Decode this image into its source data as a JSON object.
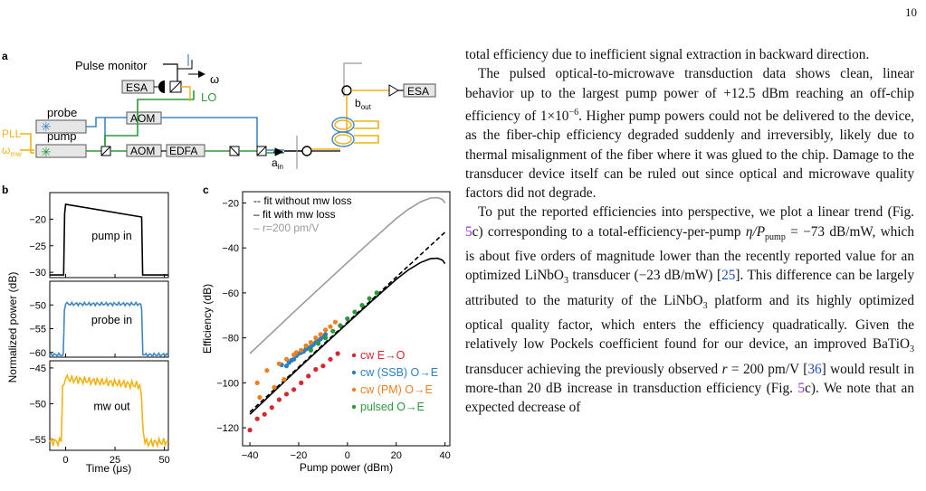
{
  "page": {
    "number": "10"
  },
  "figure": {
    "panel_a": {
      "label": "a",
      "pulse_monitor": "Pulse monitor",
      "omega": "ω",
      "esa_left": "ESA",
      "lo": "LO",
      "probe": "probe",
      "pump": "pump",
      "pll": "PLL",
      "omega_mw": "ω",
      "omega_mw_sub": "mw",
      "aom1": "AOM",
      "aom2": "AOM",
      "edfa": "EDFA",
      "a_in": "a",
      "a_in_sub": "in",
      "b_out": "b",
      "b_out_sub": "out",
      "esa_right": "ESA"
    },
    "panel_b": {
      "label": "b",
      "ylabel": "Normalized power (dB)",
      "xlabel": "Time (μs)",
      "x_ticks": [
        "0",
        "25",
        "50"
      ],
      "subpanels": [
        {
          "label": "pump in",
          "color": "#000000",
          "y_ticks": [
            "−20",
            "−25",
            "−30"
          ],
          "ylim": [
            -31,
            -15
          ]
        },
        {
          "label": "probe in",
          "color": "#3f86c4",
          "y_ticks": [
            "−50",
            "−55",
            "−60"
          ],
          "ylim": [
            -61,
            -45
          ]
        },
        {
          "label": "mw out",
          "color": "#f2b315",
          "y_ticks": [
            "−45",
            "−50",
            "−55"
          ],
          "ylim": [
            -56.5,
            -44
          ]
        }
      ]
    },
    "panel_c": {
      "label": "c"
    }
  },
  "chart_data": [
    {
      "type": "line",
      "panel": "b",
      "xlabel": "Time (μs)",
      "ylabel": "Normalized power (dB)",
      "xlim": [
        -8,
        52
      ],
      "series": [
        {
          "name": "pump in",
          "ylim": [
            -31,
            -15
          ],
          "x": [
            -8,
            -1,
            -0.5,
            0,
            38.5,
            39,
            39.5,
            52
          ],
          "y": [
            -30.5,
            -30.5,
            -19,
            -17.2,
            -19.6,
            -30.5,
            -30.5,
            -30.5
          ]
        },
        {
          "name": "probe in",
          "ylim": [
            -61,
            -45
          ],
          "x": [
            -8,
            -1.2,
            -0.6,
            0,
            38,
            38.5,
            39.1,
            52
          ],
          "y": [
            -60.5,
            -60.5,
            -51,
            -49.8,
            -49.8,
            -51,
            -60.5,
            -60.5
          ]
        },
        {
          "name": "mw out",
          "ylim": [
            -56.5,
            -44
          ],
          "x": [
            -8,
            -2.2,
            -1.5,
            0,
            37.5,
            38.4,
            39.3,
            40.2,
            52
          ],
          "y": [
            -55.3,
            -55.3,
            -47.5,
            -46.5,
            -47.4,
            -49,
            -54,
            -55.5,
            -55.3
          ]
        }
      ]
    },
    {
      "type": "scatter",
      "panel": "c",
      "xlabel": "Pump power (dBm)",
      "ylabel": "Efficiency (dB)",
      "xlim": [
        -43,
        42
      ],
      "ylim": [
        -128,
        -15
      ],
      "x_ticks": [
        -40,
        -20,
        0,
        20,
        40
      ],
      "y_ticks": [
        -20,
        -40,
        -60,
        -80,
        -100,
        -120
      ],
      "legend_placement": "top-left and bottom-right",
      "lines": [
        {
          "name": "-- fit without mw loss",
          "style": "dashed",
          "color": "#000000",
          "x": [
            -40,
            40
          ],
          "y": [
            -113,
            -33
          ]
        },
        {
          "name": "– fit with mw loss",
          "style": "solid",
          "color": "#000000",
          "x": [
            -40,
            -20,
            0,
            10,
            20,
            25,
            30,
            34,
            37,
            39,
            40
          ],
          "y": [
            -114,
            -93.5,
            -73.5,
            -63.6,
            -54,
            -49.8,
            -46.5,
            -44.8,
            -44.6,
            -45.5,
            -47
          ]
        },
        {
          "name": "– r=200 pm/V",
          "style": "solid",
          "color": "#9a9a9a",
          "x": [
            -40,
            -20,
            0,
            10,
            20,
            25,
            30,
            34,
            37,
            39,
            40
          ],
          "y": [
            -87,
            -66.5,
            -46.5,
            -36.6,
            -27,
            -22.8,
            -19.5,
            -17.8,
            -17.6,
            -18.5,
            -20
          ]
        }
      ],
      "series": [
        {
          "name": "cw E→O",
          "color": "#d8262f",
          "x": [
            -40,
            -37,
            -34,
            -31,
            -28,
            -25,
            -22,
            -19,
            -16,
            -13,
            -10,
            -7,
            -4
          ],
          "y": [
            -121,
            -116,
            -114,
            -111,
            -107.5,
            -105,
            -103,
            -100,
            -97,
            -94,
            -92.5,
            -89.5,
            -87
          ]
        },
        {
          "name": "cw (SSB) O→E",
          "color": "#2a7fc6",
          "x": [
            -27,
            -25,
            -24,
            -23,
            -22,
            -21,
            -20,
            -19,
            -18,
            -17,
            -16,
            -15,
            -14,
            -13,
            -12,
            -11,
            -10,
            -9
          ],
          "y": [
            -92,
            -92.5,
            -91,
            -90,
            -89.5,
            -88,
            -87,
            -86.5,
            -86,
            -85,
            -84.5,
            -84,
            -83,
            -82,
            -81.5,
            -80.5,
            -79.5,
            -78.5
          ]
        },
        {
          "name": "cw (PM) O→E",
          "color": "#f07f1e",
          "x": [
            -37,
            -36,
            -33,
            -30,
            -28,
            -26,
            -25,
            -22,
            -21,
            -19,
            -17,
            -15,
            -13,
            -11,
            -9,
            -7,
            -5
          ],
          "y": [
            -100,
            -106.5,
            -94.5,
            -102,
            -91.5,
            -98.5,
            -89.5,
            -87.5,
            -86.5,
            -85.5,
            -83.5,
            -82,
            -80,
            -78.5,
            -76.5,
            -75,
            -73
          ]
        },
        {
          "name": "pulsed O→E",
          "color": "#2a9a3b",
          "x": [
            -15,
            -12,
            -9,
            -6,
            -3,
            0,
            3,
            6,
            9,
            12
          ],
          "y": [
            -85.5,
            -82.5,
            -80,
            -77,
            -74.5,
            -71.5,
            -68.5,
            -65.5,
            -62.5,
            -60
          ]
        }
      ]
    }
  ],
  "text": {
    "p0": "total efficiency due to inefficient signal extraction in backward direction.",
    "p1": {
      "a": "The pulsed optical-to-microwave transduction data shows clean, linear behavior up to the largest pump power of +12.5 dBm reaching an off-chip efficiency of 1×10",
      "exp": "−6",
      "b": ". Higher pump powers could not be delivered to the device, as the fiber-chip efficiency degraded suddenly and irreversibly, likely due to thermal misalignment of the fiber where it was glued to the chip. Damage to the transducer device itself can be ruled out since optical and microwave quality factors did not degrade."
    },
    "p2": {
      "a": "To put the reported efficiencies into perspective, we plot a linear trend (Fig. ",
      "ref1": "5",
      "b": "c) corresponding to a total-efficiency-per-pump ",
      "eta": "η/P",
      "eta_sub": "pump",
      "c": " = −73 dB/mW, which is about five orders of magnitude lower than the recently reported value for an optimized LiNbO",
      "sub3a": "3",
      "d": " transducer (−23 dB/mW) [",
      "cite1": "25",
      "e": "]. This difference can be largely attributed to the maturity of the LiNbO",
      "sub3b": "3",
      "f": " platform and its highly optimized optical quality factor, which enters the efficiency quadratically. Given the relatively low Pockels coefficient found for our device, an improved BaTiO",
      "sub3c": "3",
      "g": " transducer achieving the previously observed ",
      "r": "r",
      "h": " = 200 pm/V [",
      "cite2": "36",
      "i": "] would result in more-than 20 dB increase in transduction efficiency (Fig. ",
      "ref2": "5",
      "j": "c). We note that an expected decrease of"
    }
  }
}
